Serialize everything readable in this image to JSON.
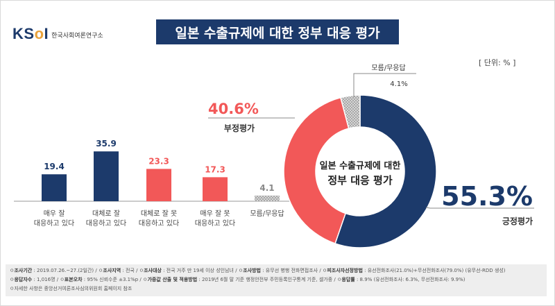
{
  "logo": {
    "mark_left": "KS",
    "mark_o": "o",
    "mark_right": "I",
    "org_name": "한국사회여론연구소"
  },
  "title": "일본 수출규제에 대한 정부 대응 평가",
  "unit": "[ 단위: % ]",
  "colors": {
    "navy": "#1c3a6b",
    "red": "#f25858",
    "gray": "#b0b0b0"
  },
  "chart_data": [
    {
      "type": "bar",
      "categories": [
        [
          "매우 잘",
          "대응하고 있다"
        ],
        [
          "대체로 잘",
          "대응하고 있다"
        ],
        [
          "대체로 잘 못",
          "대응하고 있다"
        ],
        [
          "매우 잘 못",
          "대응하고 있다"
        ],
        [
          "모름/무응답"
        ]
      ],
      "values": [
        19.4,
        35.9,
        23.3,
        17.3,
        4.1
      ],
      "value_labels": [
        "19.4",
        "35.9",
        "23.3",
        "17.3",
        "4.1"
      ],
      "colors": [
        "#1c3a6b",
        "#1c3a6b",
        "#f25858",
        "#f25858",
        "#b0b0b0"
      ]
    },
    {
      "type": "pie",
      "center_label": [
        "일본 수출규제에 대한",
        "정부 대응 평가"
      ],
      "slices": [
        {
          "label": "긍정평가",
          "value": 55.3,
          "value_label": "55.3%",
          "color": "#1c3a6b"
        },
        {
          "label": "부정평가",
          "value": 40.6,
          "value_label": "40.6%",
          "color": "#f25858"
        },
        {
          "label": "모름/무응답",
          "value": 4.1,
          "value_label": "4.1%",
          "color": "#b0b0b0"
        }
      ]
    }
  ],
  "footer": {
    "rows": [
      [
        {
          "k": "조사기간",
          "v": " : 2019.07.26.~27.(2일간)"
        },
        {
          "k": "조사지역",
          "v": " : 전국"
        },
        {
          "k": "조사대상",
          "v": " : 전국 거주 만 19세 이상 성인남녀"
        },
        {
          "k": "조사방법",
          "v": " : 유무선 병행 전화면접조사"
        },
        {
          "k": "피조사자선정방법",
          "v": " : 유선전화조사(21.0%)+무선전화조사(79.0%) (유무선-RDD 생성)"
        }
      ],
      [
        {
          "k": "응답자수",
          "v": " : 1,016명"
        },
        {
          "k": "표본오차",
          "v": " : 95% 신뢰수준 ±3.1%p"
        },
        {
          "k": "가중값 산출 및 적용방법",
          "v": " : 2019년 6월 말 기준 행정안전부 주민등록인구통계 기준, 셀가중"
        },
        {
          "k": "응답률",
          "v": " : 8.9% (유선전화조사: 6.3%, 무선전화조사: 9.9%)"
        }
      ],
      [
        {
          "k": "",
          "v": "자세한 사항은 중앙선거여론조사심의위원회 홈페이지 참조"
        }
      ]
    ]
  }
}
